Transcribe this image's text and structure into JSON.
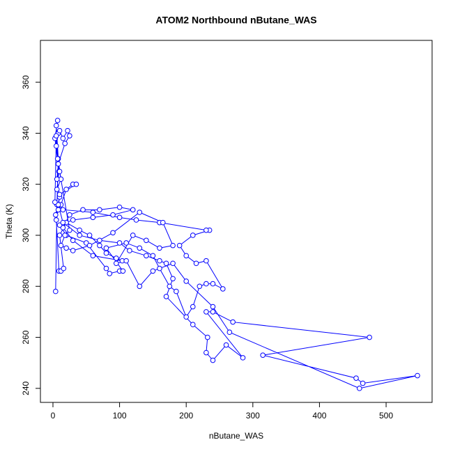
{
  "chart_data": {
    "type": "line_points",
    "title": "ATOM2 Northbound nButane_WAS",
    "x_label": "nButane_WAS",
    "y_label": "Theta (K)",
    "color": "#0000ff",
    "xlim": [
      -18.8,
      569
    ],
    "ylim": [
      234.5,
      376.4
    ],
    "xticks": [
      0,
      100,
      200,
      300,
      400,
      500
    ],
    "yticks": [
      240,
      260,
      280,
      300,
      320,
      340,
      360
    ],
    "x": [
      4,
      6,
      8,
      5,
      7,
      3,
      9,
      6,
      12,
      5,
      8,
      10,
      15,
      22,
      25,
      18,
      8,
      6,
      10,
      4,
      12,
      20,
      30,
      35,
      10,
      8,
      5,
      9,
      12,
      16,
      10,
      20,
      40,
      55,
      70,
      80,
      95,
      104,
      60,
      30,
      15,
      25,
      45,
      70,
      100,
      120,
      90,
      60,
      30,
      10,
      20,
      50,
      80,
      85,
      100,
      105,
      80,
      110,
      130,
      150,
      160,
      175,
      185,
      200,
      210,
      220,
      230,
      240,
      255,
      230,
      215,
      200,
      190,
      210,
      235,
      230,
      160,
      125,
      100,
      60,
      15,
      8,
      15,
      40,
      70,
      100,
      115,
      140,
      160,
      170,
      180,
      170,
      210,
      232,
      230,
      240,
      260,
      285,
      230,
      240,
      270,
      475,
      315,
      455,
      465,
      547,
      460,
      265,
      240,
      200,
      180,
      150,
      130,
      110,
      95,
      120,
      140,
      160,
      180,
      165,
      130,
      90,
      55,
      30,
      20,
      12,
      18,
      25,
      10,
      7,
      5,
      3
    ],
    "y": [
      278,
      312,
      330,
      343,
      345,
      338,
      325,
      318,
      322,
      335,
      340,
      341,
      338,
      341,
      339,
      336,
      328,
      322,
      315,
      308,
      312,
      318,
      320,
      320,
      316,
      310,
      306,
      286,
      286,
      287,
      300,
      305,
      302,
      300,
      296,
      293,
      291,
      290,
      292,
      298,
      303,
      308,
      310,
      310,
      311,
      310,
      308,
      307,
      306,
      304,
      300,
      297,
      287,
      285,
      286,
      286,
      295,
      297,
      295,
      292,
      287,
      280,
      278,
      268,
      272,
      280,
      281,
      281,
      279,
      290,
      289,
      292,
      296,
      300,
      302,
      302,
      305,
      306,
      307,
      309,
      310,
      312,
      305,
      300,
      298,
      297,
      294,
      292,
      290,
      289,
      283,
      276,
      265,
      260,
      254,
      251,
      257,
      252,
      270,
      270,
      266,
      260,
      253,
      244,
      242,
      245,
      240,
      262,
      272,
      282,
      289,
      286,
      280,
      290,
      289,
      300,
      298,
      295,
      296,
      305,
      309,
      301,
      296,
      294,
      295,
      296,
      300,
      302,
      325,
      330,
      339,
      313
    ]
  }
}
